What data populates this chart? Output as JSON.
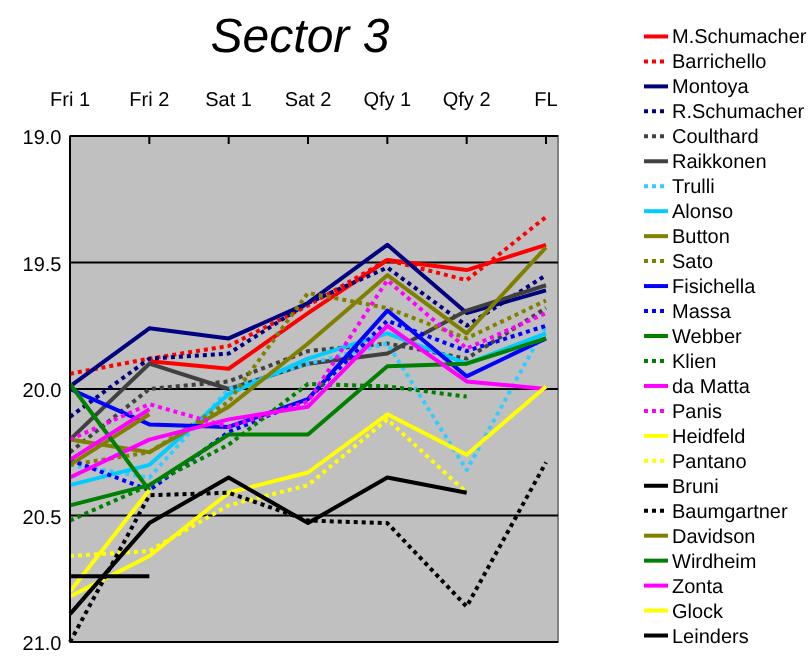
{
  "chart_data": {
    "type": "line",
    "title": "Sector 3",
    "categories": [
      "Fri 1",
      "Fri 2",
      "Sat 1",
      "Sat 2",
      "Qfy 1",
      "Qfy 2",
      "FL"
    ],
    "ylim": [
      21.0,
      19.0
    ],
    "yticks": [
      {
        "value": 19.0,
        "label": "19.0"
      },
      {
        "value": 19.5,
        "label": "19.5"
      },
      {
        "value": 20.0,
        "label": "20.0"
      },
      {
        "value": 20.5,
        "label": "20.5"
      },
      {
        "value": 21.0,
        "label": "21.0"
      }
    ],
    "grid": "y",
    "legend": "right",
    "series": [
      {
        "name": "M.Schumacher",
        "color": "#ff0000",
        "line_style": "solid",
        "values": [
          null,
          19.89,
          19.92,
          19.7,
          19.49,
          19.53,
          19.43
        ]
      },
      {
        "name": "Barrichello",
        "color": "#ff0000",
        "line_style": "dotted",
        "values": [
          19.94,
          19.88,
          19.83,
          19.67,
          19.49,
          19.57,
          19.32
        ]
      },
      {
        "name": "Montoya",
        "color": "#000080",
        "line_style": "solid",
        "values": [
          19.99,
          19.76,
          19.8,
          19.66,
          19.43,
          19.7,
          19.61
        ]
      },
      {
        "name": "R.Schumacher",
        "color": "#000080",
        "line_style": "dotted",
        "values": [
          20.11,
          19.88,
          19.86,
          19.66,
          19.52,
          19.75,
          19.55
        ]
      },
      {
        "name": "Coulthard",
        "color": "#404040",
        "line_style": "dotted",
        "values": [
          20.25,
          20.0,
          19.97,
          19.85,
          19.82,
          19.88,
          19.68
        ]
      },
      {
        "name": "Raikkonen",
        "color": "#404040",
        "line_style": "solid",
        "values": [
          20.2,
          19.9,
          20.0,
          19.9,
          19.86,
          19.69,
          19.59
        ]
      },
      {
        "name": "Trulli",
        "color": "#33ccff",
        "line_style": "dotted",
        "values": [
          20.3,
          20.35,
          20.0,
          19.9,
          19.82,
          20.32,
          19.75
        ]
      },
      {
        "name": "Alonso",
        "color": "#00ccff",
        "line_style": "solid",
        "values": [
          20.38,
          20.3,
          20.02,
          19.88,
          19.78,
          19.9,
          19.78
        ]
      },
      {
        "name": "Button",
        "color": "#808000",
        "line_style": "solid",
        "values": [
          20.2,
          20.25,
          20.07,
          19.82,
          19.55,
          19.78,
          19.44
        ]
      },
      {
        "name": "Sato",
        "color": "#808000",
        "line_style": "dotted",
        "values": [
          20.3,
          20.25,
          20.05,
          19.62,
          19.68,
          19.8,
          19.65
        ]
      },
      {
        "name": "Fisichella",
        "color": "#0000ff",
        "line_style": "solid",
        "values": [
          20.0,
          20.14,
          20.15,
          20.04,
          19.69,
          19.95,
          19.8
        ]
      },
      {
        "name": "Massa",
        "color": "#0000ff",
        "line_style": "dotted",
        "values": [
          20.28,
          20.4,
          20.17,
          20.04,
          19.73,
          19.85,
          19.75
        ]
      },
      {
        "name": "Webber",
        "color": "#008000",
        "line_style": "solid",
        "values": [
          20.46,
          20.38,
          20.18,
          20.18,
          19.91,
          19.9,
          19.8
        ]
      },
      {
        "name": "Klien",
        "color": "#008000",
        "line_style": "dotted",
        "values": [
          20.52,
          20.38,
          20.22,
          19.98,
          19.99,
          20.03,
          null
        ]
      },
      {
        "name": "da Matta",
        "color": "#ff00ff",
        "line_style": "solid",
        "values": [
          20.35,
          20.2,
          20.12,
          20.07,
          19.75,
          19.97,
          20.0
        ]
      },
      {
        "name": "Panis",
        "color": "#ff00ff",
        "line_style": "dotted",
        "values": [
          20.2,
          20.06,
          20.15,
          20.05,
          19.57,
          19.84,
          19.7
        ]
      },
      {
        "name": "Heidfeld",
        "color": "#ffff00",
        "line_style": "solid",
        "values": [
          20.82,
          20.66,
          20.41,
          20.33,
          20.1,
          20.26,
          19.99
        ]
      },
      {
        "name": "Pantano",
        "color": "#ffff00",
        "line_style": "dotted",
        "values": [
          20.66,
          20.64,
          20.46,
          20.38,
          20.12,
          20.41,
          null
        ]
      },
      {
        "name": "Bruni",
        "color": "#000000",
        "line_style": "solid",
        "values": [
          20.89,
          20.53,
          20.35,
          20.53,
          20.35,
          20.41,
          null
        ]
      },
      {
        "name": "Baumgartner",
        "color": "#000000",
        "line_style": "dotted",
        "values": [
          21.0,
          20.42,
          20.41,
          20.52,
          20.53,
          20.86,
          20.29
        ]
      },
      {
        "name": "Davidson",
        "color": "#808000",
        "line_style": "solid",
        "values": [
          20.3,
          20.1,
          null,
          null,
          null,
          null,
          null
        ]
      },
      {
        "name": "Wirdheim",
        "color": "#008000",
        "line_style": "solid",
        "values": [
          19.98,
          20.4,
          null,
          null,
          null,
          null,
          null
        ]
      },
      {
        "name": "Zonta",
        "color": "#ff00ff",
        "line_style": "solid",
        "values": [
          20.28,
          20.08,
          null,
          null,
          null,
          null,
          null
        ]
      },
      {
        "name": "Glock",
        "color": "#ffff00",
        "line_style": "solid",
        "values": [
          20.8,
          20.4,
          null,
          null,
          null,
          null,
          null
        ]
      },
      {
        "name": "Leinders",
        "color": "#000000",
        "line_style": "solid",
        "values": [
          20.74,
          20.74,
          null,
          null,
          null,
          null,
          null
        ]
      }
    ]
  }
}
